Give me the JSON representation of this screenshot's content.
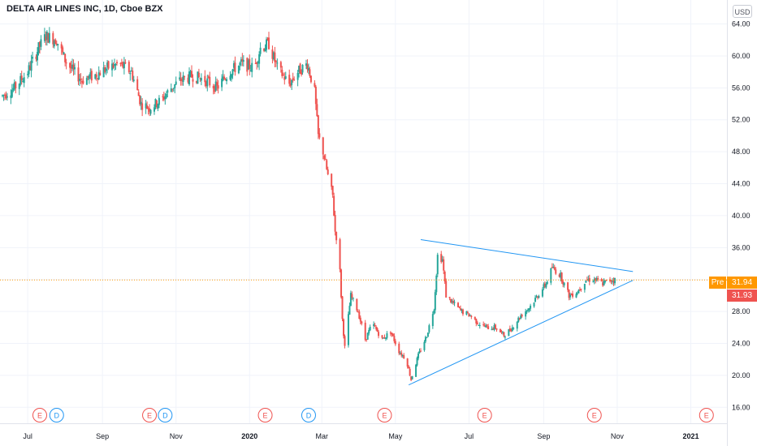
{
  "chart_data": {
    "type": "candlestick",
    "title": "DELTA AIR LINES INC, 1D, Cboe BZX",
    "currency": "USD",
    "ylim": [
      14,
      67
    ],
    "y_ticks": [
      "64.00",
      "60.00",
      "56.00",
      "52.00",
      "48.00",
      "44.00",
      "40.00",
      "36.00",
      "32.00",
      "28.00",
      "24.00",
      "20.00",
      "16.00"
    ],
    "x_ticks": [
      "Jul",
      "Sep",
      "Nov",
      "2020",
      "Mar",
      "May",
      "Jul",
      "Sep",
      "Nov",
      "2021"
    ],
    "bold_x_ticks": [
      "2020",
      "2021"
    ],
    "x_range": [
      "2019-06-08",
      "2021-01-31"
    ],
    "pre_market": {
      "label": "Pre",
      "value": "31.94"
    },
    "last_price": {
      "value": "31.93"
    },
    "colors": {
      "up": "#26a69a",
      "down": "#ef5350",
      "trendline": "#2196f3",
      "pre": "#ff9800",
      "earnings": "#ef5350",
      "dividend": "#2196f3"
    },
    "trendlines": [
      {
        "name": "upper",
        "from": [
          "2020-05-22",
          37.0
        ],
        "to": [
          "2020-11-14",
          33.0
        ]
      },
      {
        "name": "lower",
        "from": [
          "2020-05-12",
          18.8
        ],
        "to": [
          "2020-11-14",
          31.9
        ]
      }
    ],
    "events": [
      {
        "type": "E",
        "date": "2019-07-11"
      },
      {
        "type": "D",
        "date": "2019-07-25"
      },
      {
        "type": "E",
        "date": "2019-10-10"
      },
      {
        "type": "D",
        "date": "2019-10-23"
      },
      {
        "type": "E",
        "date": "2020-01-14"
      },
      {
        "type": "D",
        "date": "2020-02-19"
      },
      {
        "type": "E",
        "date": "2020-04-22"
      },
      {
        "type": "E",
        "date": "2020-07-14"
      },
      {
        "type": "E",
        "date": "2020-10-13"
      },
      {
        "type": "E",
        "date": "2021-01-14"
      }
    ],
    "price_path": [
      [
        "2019-06-10",
        55.0
      ],
      [
        "2019-06-20",
        56.0
      ],
      [
        "2019-07-01",
        58.0
      ],
      [
        "2019-07-10",
        61.0
      ],
      [
        "2019-07-16",
        62.5
      ],
      [
        "2019-07-25",
        62.0
      ],
      [
        "2019-08-01",
        59.5
      ],
      [
        "2019-08-08",
        58.0
      ],
      [
        "2019-08-15",
        57.0
      ],
      [
        "2019-08-25",
        57.5
      ],
      [
        "2019-09-05",
        58.5
      ],
      [
        "2019-09-15",
        59.0
      ],
      [
        "2019-09-25",
        58.0
      ],
      [
        "2019-10-03",
        54.0
      ],
      [
        "2019-10-10",
        53.5
      ],
      [
        "2019-10-20",
        54.5
      ],
      [
        "2019-10-28",
        56.0
      ],
      [
        "2019-11-05",
        57.0
      ],
      [
        "2019-11-15",
        57.5
      ],
      [
        "2019-11-25",
        57.0
      ],
      [
        "2019-12-05",
        56.0
      ],
      [
        "2019-12-15",
        58.0
      ],
      [
        "2019-12-25",
        59.0
      ],
      [
        "2020-01-05",
        58.5
      ],
      [
        "2020-01-10",
        61.0
      ],
      [
        "2020-01-17",
        61.5
      ],
      [
        "2020-01-24",
        58.5
      ],
      [
        "2020-02-03",
        56.5
      ],
      [
        "2020-02-10",
        58.0
      ],
      [
        "2020-02-18",
        59.0
      ],
      [
        "2020-02-24",
        55.5
      ],
      [
        "2020-02-27",
        50.0
      ],
      [
        "2020-03-02",
        48.0
      ],
      [
        "2020-03-06",
        45.0
      ],
      [
        "2020-03-10",
        42.5
      ],
      [
        "2020-03-12",
        38.0
      ],
      [
        "2020-03-15",
        36.0
      ],
      [
        "2020-03-18",
        27.0
      ],
      [
        "2020-03-20",
        23.5
      ],
      [
        "2020-03-25",
        30.0
      ],
      [
        "2020-03-31",
        28.0
      ],
      [
        "2020-04-06",
        24.5
      ],
      [
        "2020-04-12",
        26.5
      ],
      [
        "2020-04-20",
        24.5
      ],
      [
        "2020-04-27",
        25.5
      ],
      [
        "2020-05-04",
        23.0
      ],
      [
        "2020-05-10",
        22.0
      ],
      [
        "2020-05-14",
        19.5
      ],
      [
        "2020-05-20",
        22.5
      ],
      [
        "2020-05-27",
        25.0
      ],
      [
        "2020-06-02",
        28.5
      ],
      [
        "2020-06-05",
        35.0
      ],
      [
        "2020-06-09",
        34.5
      ],
      [
        "2020-06-12",
        30.0
      ],
      [
        "2020-06-18",
        29.0
      ],
      [
        "2020-06-25",
        28.0
      ],
      [
        "2020-07-02",
        27.5
      ],
      [
        "2020-07-09",
        26.5
      ],
      [
        "2020-07-16",
        26.0
      ],
      [
        "2020-07-23",
        26.0
      ],
      [
        "2020-07-30",
        25.0
      ],
      [
        "2020-08-06",
        26.0
      ],
      [
        "2020-08-13",
        27.5
      ],
      [
        "2020-08-20",
        28.5
      ],
      [
        "2020-08-27",
        30.0
      ],
      [
        "2020-09-03",
        31.5
      ],
      [
        "2020-09-08",
        33.5
      ],
      [
        "2020-09-15",
        32.5
      ],
      [
        "2020-09-22",
        30.0
      ],
      [
        "2020-09-29",
        30.5
      ],
      [
        "2020-10-06",
        32.0
      ],
      [
        "2020-10-13",
        32.0
      ],
      [
        "2020-10-20",
        31.5
      ],
      [
        "2020-10-27",
        32.0
      ],
      [
        "2020-10-30",
        31.93
      ]
    ]
  }
}
